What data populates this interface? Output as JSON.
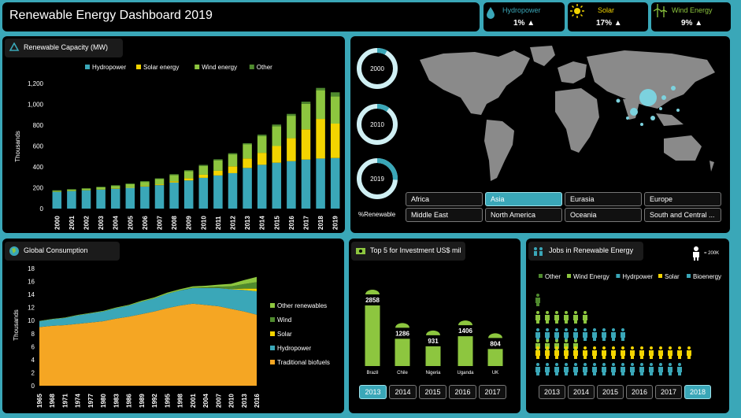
{
  "title": "Renewable Energy Dashboard 2019",
  "kpis": [
    {
      "label": "Hydropower",
      "value": "1%",
      "color": "#3aa7b8",
      "icon": "drop-icon"
    },
    {
      "label": "Solar",
      "value": "17%",
      "color": "#f3d400",
      "icon": "sun-icon"
    },
    {
      "label": "Wind Energy",
      "value": "9%",
      "color": "#8dc63f",
      "icon": "wind-turbine-icon"
    }
  ],
  "capacity": {
    "title": "Renewable Capacity (MW)",
    "ylabel": "Thousands",
    "colors": {
      "Hydropower": "#3aa7b8",
      "Solar energy": "#f3d400",
      "Wind energy": "#8dc63f",
      "Other": "#4f8a2e"
    }
  },
  "donuts": [
    {
      "label": "2000",
      "percent": 8
    },
    {
      "label": "2010",
      "percent": 10
    },
    {
      "label": "2019",
      "percent": 26
    }
  ],
  "renewable_label": "%Renewable",
  "regions": [
    "Africa",
    "Asia",
    "Eurasia",
    "Europe",
    "Middle East",
    "North America",
    "Oceania",
    "South and Central ..."
  ],
  "selected_region": "Asia",
  "consumption": {
    "title": "Global Consumption",
    "ylabel": "Thousands",
    "colors": {
      "Other renewables": "#8dc63f",
      "Wind": "#4f8a2e",
      "Solar": "#f3d400",
      "Hydropower": "#3aa7b8",
      "Traditional biofuels": "#f5a623"
    }
  },
  "investment": {
    "title": "Top 5 for Investment US$ mil",
    "years": [
      "2013",
      "2014",
      "2015",
      "2016",
      "2017"
    ],
    "selected_year": "2013"
  },
  "jobs": {
    "title": "Jobs in Renewable Energy",
    "scale_label": "= 200K",
    "legend": [
      {
        "name": "Other",
        "color": "#4f8a2e"
      },
      {
        "name": "Wind Energy",
        "color": "#8dc63f"
      },
      {
        "name": "Hydrpower",
        "color": "#3aa7b8"
      },
      {
        "name": "Solar",
        "color": "#f3d400"
      },
      {
        "name": "Bioenergy",
        "color": "#3aa7b8"
      }
    ],
    "rows": [
      {
        "name": "Other",
        "count": 1,
        "color": "#4f8a2e"
      },
      {
        "name": "Wind Energy",
        "count": 6,
        "color": "#8dc63f"
      },
      {
        "name": "Hydrpower",
        "count": 10,
        "color": "#3aa7b8"
      },
      {
        "name": "Solar",
        "count": 5,
        "color": "#8dc63f"
      },
      {
        "name": "Solar",
        "count": 17,
        "color": "#f3d400"
      },
      {
        "name": "Bioenergy",
        "count": 16,
        "color": "#3aa7b8"
      }
    ],
    "years": [
      "2013",
      "2014",
      "2015",
      "2016",
      "2017",
      "2018"
    ],
    "selected_year": "2018"
  },
  "chart_data": [
    {
      "type": "bar",
      "stacked": true,
      "title": "Renewable Capacity (MW)",
      "ylabel": "Thousands",
      "ylim": [
        0,
        1200
      ],
      "yticks": [
        0,
        200,
        400,
        600,
        800,
        1000,
        1200
      ],
      "legend_position": "top",
      "categories": [
        "2000",
        "2001",
        "2002",
        "2003",
        "2004",
        "2005",
        "2006",
        "2007",
        "2008",
        "2009",
        "2010",
        "2011",
        "2012",
        "2013",
        "2014",
        "2015",
        "2016",
        "2017",
        "2018",
        "2019"
      ],
      "series": [
        {
          "name": "Hydropower",
          "values": [
            160,
            168,
            175,
            182,
            190,
            200,
            212,
            225,
            250,
            270,
            295,
            318,
            340,
            390,
            420,
            440,
            455,
            470,
            480,
            485
          ]
        },
        {
          "name": "Solar energy",
          "values": [
            1,
            1,
            1,
            2,
            3,
            4,
            6,
            8,
            12,
            20,
            30,
            45,
            65,
            90,
            115,
            160,
            220,
            290,
            380,
            330
          ]
        },
        {
          "name": "Wind energy",
          "values": [
            10,
            12,
            15,
            20,
            25,
            30,
            38,
            50,
            60,
            70,
            85,
            100,
            115,
            135,
            160,
            190,
            215,
            245,
            275,
            260
          ]
        },
        {
          "name": "Other",
          "values": [
            5,
            5,
            5,
            5,
            6,
            6,
            7,
            7,
            8,
            8,
            9,
            10,
            11,
            12,
            14,
            16,
            18,
            20,
            22,
            40
          ]
        }
      ]
    },
    {
      "type": "area",
      "stacked": true,
      "title": "Global Consumption",
      "ylabel": "Thousands",
      "ylim": [
        0,
        18
      ],
      "yticks": [
        0,
        2,
        4,
        6,
        8,
        10,
        12,
        14,
        16,
        18
      ],
      "legend_position": "right",
      "x": [
        1965,
        1968,
        1971,
        1974,
        1977,
        1980,
        1983,
        1986,
        1989,
        1992,
        1995,
        1998,
        2001,
        2004,
        2007,
        2010,
        2013,
        2016
      ],
      "series": [
        {
          "name": "Traditional biofuels",
          "values": [
            9.0,
            9.2,
            9.3,
            9.5,
            9.7,
            9.9,
            10.3,
            10.6,
            11.0,
            11.4,
            11.9,
            12.3,
            12.6,
            12.4,
            12.2,
            11.8,
            11.4,
            10.9
          ]
        },
        {
          "name": "Hydropower",
          "values": [
            0.9,
            1.0,
            1.1,
            1.3,
            1.4,
            1.5,
            1.6,
            1.7,
            1.9,
            2.0,
            2.2,
            2.3,
            2.4,
            2.6,
            2.8,
            3.0,
            3.3,
            3.6
          ]
        },
        {
          "name": "Solar",
          "values": [
            0,
            0,
            0,
            0,
            0,
            0,
            0,
            0,
            0,
            0,
            0,
            0,
            0,
            0,
            0.01,
            0.05,
            0.2,
            0.4
          ]
        },
        {
          "name": "Wind",
          "values": [
            0,
            0,
            0,
            0,
            0,
            0,
            0,
            0,
            0,
            0,
            0,
            0.01,
            0.03,
            0.08,
            0.2,
            0.4,
            0.7,
            1.0
          ]
        },
        {
          "name": "Other renewables",
          "values": [
            0.05,
            0.05,
            0.06,
            0.07,
            0.08,
            0.09,
            0.1,
            0.12,
            0.14,
            0.16,
            0.18,
            0.2,
            0.22,
            0.26,
            0.3,
            0.4,
            0.6,
            0.8
          ]
        }
      ]
    },
    {
      "type": "bar",
      "title": "Top 5 for Investment US$ mil",
      "categories": [
        "Brazil",
        "Chile",
        "Nigeria",
        "Uganda",
        "UK"
      ],
      "values": [
        2858,
        1286,
        931,
        1406,
        804
      ]
    },
    {
      "type": "pie",
      "title": "%Renewable",
      "categories": [
        "2000",
        "2010",
        "2019"
      ],
      "values": [
        8,
        10,
        26
      ]
    }
  ]
}
